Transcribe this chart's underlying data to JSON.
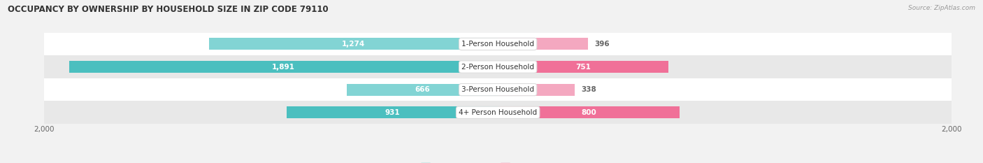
{
  "title": "OCCUPANCY BY OWNERSHIP BY HOUSEHOLD SIZE IN ZIP CODE 79110",
  "source": "Source: ZipAtlas.com",
  "categories": [
    "1-Person Household",
    "2-Person Household",
    "3-Person Household",
    "4+ Person Household"
  ],
  "owner_values": [
    1274,
    1891,
    666,
    931
  ],
  "renter_values": [
    396,
    751,
    338,
    800
  ],
  "owner_color": "#4bbfbf",
  "renter_color": "#f07098",
  "owner_color_light": "#82d4d4",
  "renter_color_light": "#f4a8c0",
  "background_color": "#f2f2f2",
  "row_colors": [
    "#ffffff",
    "#e8e8e8",
    "#ffffff",
    "#e8e8e8"
  ],
  "max_val": 2000,
  "bar_height": 0.52,
  "title_fontsize": 8.5,
  "label_fontsize": 7.5,
  "axis_fontsize": 7.5
}
